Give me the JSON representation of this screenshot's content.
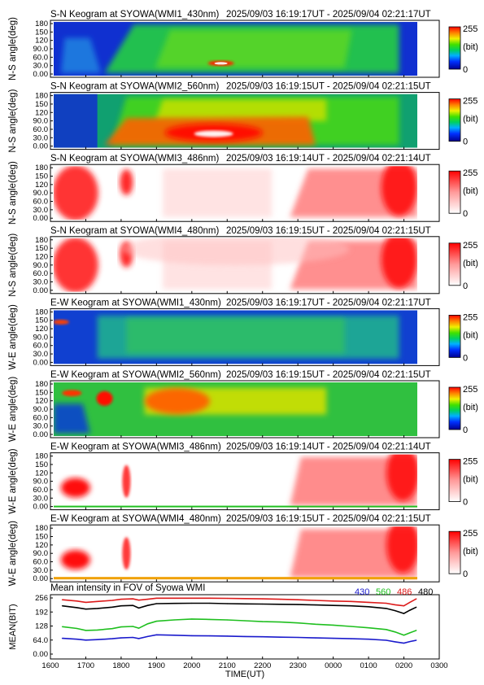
{
  "panels": [
    {
      "id": "sn1",
      "title": "S-N Keogram at SYOWA(WMI1_430nm)",
      "range": "2025/09/03 16:19:17UT - 2025/09/04 02:21:17UT",
      "ylabel": "N-S angle(deg)",
      "scheme": "rainbow",
      "pattern": "sn430"
    },
    {
      "id": "sn2",
      "title": "S-N Keogram at SYOWA(WMI2_560nm)",
      "range": "2025/09/03 16:19:15UT - 2025/09/04 02:21:15UT",
      "ylabel": "N-S angle(deg)",
      "scheme": "rainbow",
      "pattern": "sn560"
    },
    {
      "id": "sn3",
      "title": "S-N Keogram at SYOWA(WMI3_486nm)",
      "range": "2025/09/03 16:19:14UT - 2025/09/04 02:21:14UT",
      "ylabel": "N-S angle(deg)",
      "scheme": "red",
      "pattern": "sn486"
    },
    {
      "id": "sn4",
      "title": "S-N Keogram at SYOWA(WMI4_480nm)",
      "range": "2025/09/03 16:19:15UT - 2025/09/04 02:21:15UT",
      "ylabel": "N-S angle(deg)",
      "scheme": "red",
      "pattern": "sn480"
    },
    {
      "id": "ew1",
      "title": "E-W Keogram at SYOWA(WMI1_430nm)",
      "range": "2025/09/03 16:19:17UT - 2025/09/04 02:21:17UT",
      "ylabel": "W-E angle(deg)",
      "scheme": "rainbow",
      "pattern": "ew430"
    },
    {
      "id": "ew2",
      "title": "E-W Keogram at SYOWA(WMI2_560nm)",
      "range": "2025/09/03 16:19:15UT - 2025/09/04 02:21:15UT",
      "ylabel": "W-E angle(deg)",
      "scheme": "rainbow",
      "pattern": "ew560"
    },
    {
      "id": "ew3",
      "title": "E-W Keogram at SYOWA(WMI3_486nm)",
      "range": "2025/09/03 16:19:14UT - 2025/09/04 02:21:14UT",
      "ylabel": "W-E angle(deg)",
      "scheme": "red",
      "pattern": "ew486"
    },
    {
      "id": "ew4",
      "title": "E-W Keogram at SYOWA(WMI4_480nm)",
      "range": "2025/09/03 16:19:15UT - 2025/09/04 02:21:15UT",
      "ylabel": "W-E angle(deg)",
      "scheme": "red",
      "pattern": "ew480"
    }
  ],
  "keogram_yticks": [
    "180",
    "150",
    "120",
    "90.0",
    "60.0",
    "30.0",
    "0.00"
  ],
  "colorbar": {
    "max_label": "255",
    "unit_label": "(bit)",
    "min_label": "0"
  },
  "mean_panel": {
    "title": "Mean intensity in FOV of Syowa WMI",
    "ylabel": "MEAN(BIT)",
    "xlabel": "TIME(UT)",
    "yticks": [
      "256",
      "192",
      "128",
      "64.0",
      "0.00"
    ],
    "xticks": [
      "1600",
      "1700",
      "1800",
      "1900",
      "2000",
      "2100",
      "2200",
      "2300",
      "0000",
      "0100",
      "0200",
      "0300"
    ],
    "legend": [
      {
        "label": "430",
        "color": "#1a1acc"
      },
      {
        "label": "560",
        "color": "#1fbf1f"
      },
      {
        "label": "486",
        "color": "#dd1a1a"
      },
      {
        "label": "480",
        "color": "#000000"
      }
    ]
  },
  "colors": {
    "rainbow_low": "#0000a0",
    "rainbow_mid": "#00d000",
    "rainbow_high": "#ff0000",
    "red_low": "#ffffff",
    "red_high": "#ff0000"
  },
  "chart_data": {
    "type": "line",
    "title": "Mean intensity in FOV of Syowa WMI",
    "xlabel": "TIME(UT)",
    "ylabel": "MEAN(BIT)",
    "ylim": [
      0,
      256
    ],
    "x": [
      "16:20",
      "16:45",
      "17:00",
      "17:20",
      "17:45",
      "18:00",
      "18:20",
      "18:30",
      "18:45",
      "19:00",
      "19:30",
      "20:00",
      "20:30",
      "21:00",
      "21:30",
      "22:00",
      "22:30",
      "23:00",
      "23:30",
      "00:00",
      "00:30",
      "01:00",
      "01:30",
      "01:45",
      "02:00",
      "02:10",
      "02:21"
    ],
    "series": [
      {
        "name": "430",
        "color": "#1a1acc",
        "values": [
          72,
          68,
          64,
          66,
          70,
          74,
          76,
          71,
          80,
          88,
          86,
          84,
          83,
          82,
          80,
          79,
          77,
          76,
          74,
          72,
          70,
          68,
          63,
          56,
          50,
          57,
          63
        ]
      },
      {
        "name": "560",
        "color": "#1fbf1f",
        "values": [
          125,
          117,
          108,
          110,
          116,
          124,
          126,
          118,
          138,
          150,
          156,
          160,
          158,
          156,
          152,
          148,
          146,
          142,
          136,
          132,
          126,
          120,
          112,
          101,
          86,
          97,
          108
        ]
      },
      {
        "name": "486",
        "color": "#dd1a1a",
        "values": [
          248,
          242,
          236,
          240,
          245,
          250,
          252,
          246,
          250,
          255,
          255,
          255,
          255,
          254,
          253,
          252,
          250,
          248,
          245,
          242,
          240,
          236,
          232,
          225,
          220,
          236,
          252
        ]
      },
      {
        "name": "480",
        "color": "#000000",
        "values": [
          220,
          212,
          205,
          208,
          214,
          220,
          222,
          210,
          222,
          230,
          231,
          232,
          232,
          230,
          229,
          228,
          227,
          226,
          224,
          222,
          220,
          216,
          208,
          198,
          185,
          200,
          214
        ]
      }
    ]
  }
}
